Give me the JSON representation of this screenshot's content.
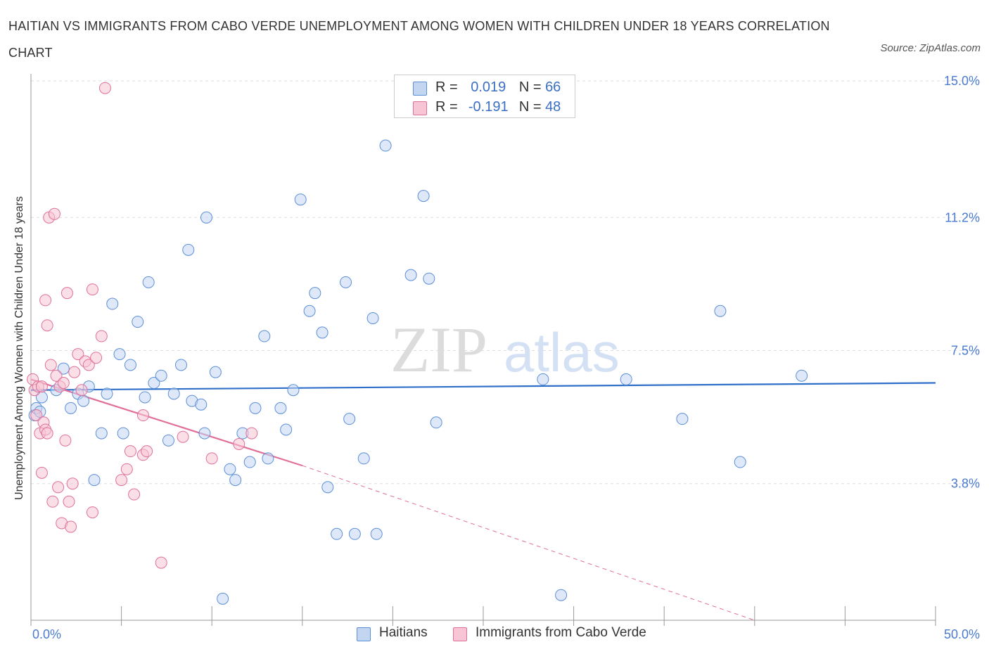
{
  "title": "HAITIAN VS IMMIGRANTS FROM CABO VERDE UNEMPLOYMENT AMONG WOMEN WITH CHILDREN UNDER 18 YEARS CORRELATION CHART",
  "source": "Source: ZipAtlas.com",
  "watermark_zip": "ZIP",
  "watermark_atlas": "atlas",
  "legend": {
    "r_label": "R =",
    "n_label": "N =",
    "haitians": {
      "r": "0.019",
      "n": "66"
    },
    "caboverde": {
      "r": "-0.191",
      "n": "48"
    }
  },
  "chart_data": {
    "type": "scatter",
    "ylabel": "Unemployment Among Women with Children Under 18 years",
    "xlim": [
      0,
      50
    ],
    "ylim": [
      0,
      15
    ],
    "x_tick_labels": [
      "0.0%",
      "50.0%"
    ],
    "y_ticks": [
      {
        "value": 3.8,
        "label": "3.8%"
      },
      {
        "value": 7.5,
        "label": "7.5%"
      },
      {
        "value": 11.2,
        "label": "11.2%"
      },
      {
        "value": 15.0,
        "label": "15.0%"
      }
    ],
    "series": [
      {
        "name": "Haitians",
        "color": "#5b8fd6",
        "fill": "#c2d6f2",
        "trend": {
          "x": [
            0,
            50
          ],
          "y": [
            6.4,
            6.6
          ],
          "style": "solid"
        },
        "points": [
          [
            0.2,
            5.7
          ],
          [
            0.3,
            5.9
          ],
          [
            0.5,
            5.8
          ],
          [
            0.6,
            6.2
          ],
          [
            1.4,
            6.4
          ],
          [
            1.8,
            7.0
          ],
          [
            2.2,
            5.9
          ],
          [
            2.6,
            6.3
          ],
          [
            2.9,
            6.1
          ],
          [
            3.2,
            6.5
          ],
          [
            3.5,
            3.9
          ],
          [
            3.9,
            5.2
          ],
          [
            4.2,
            6.3
          ],
          [
            4.5,
            8.8
          ],
          [
            4.9,
            7.4
          ],
          [
            5.1,
            5.2
          ],
          [
            5.5,
            7.1
          ],
          [
            5.9,
            8.3
          ],
          [
            6.3,
            6.2
          ],
          [
            6.5,
            9.4
          ],
          [
            6.8,
            6.6
          ],
          [
            7.2,
            6.8
          ],
          [
            7.6,
            5.0
          ],
          [
            7.9,
            6.3
          ],
          [
            8.3,
            7.1
          ],
          [
            8.7,
            10.3
          ],
          [
            8.9,
            6.1
          ],
          [
            9.4,
            6.0
          ],
          [
            9.6,
            5.2
          ],
          [
            9.7,
            11.2
          ],
          [
            10.2,
            6.9
          ],
          [
            10.6,
            0.6
          ],
          [
            11.0,
            4.2
          ],
          [
            11.3,
            3.9
          ],
          [
            11.7,
            5.2
          ],
          [
            12.1,
            4.4
          ],
          [
            12.4,
            5.9
          ],
          [
            12.9,
            7.9
          ],
          [
            13.1,
            4.5
          ],
          [
            13.8,
            5.9
          ],
          [
            14.1,
            5.3
          ],
          [
            14.5,
            6.4
          ],
          [
            14.9,
            11.7
          ],
          [
            15.4,
            8.6
          ],
          [
            15.7,
            9.1
          ],
          [
            16.1,
            8.0
          ],
          [
            16.4,
            3.7
          ],
          [
            16.9,
            2.4
          ],
          [
            17.4,
            9.4
          ],
          [
            17.6,
            5.6
          ],
          [
            17.9,
            2.4
          ],
          [
            18.4,
            4.5
          ],
          [
            18.9,
            8.4
          ],
          [
            19.1,
            2.4
          ],
          [
            19.6,
            13.2
          ],
          [
            21.0,
            9.6
          ],
          [
            21.7,
            11.8
          ],
          [
            22.0,
            9.5
          ],
          [
            22.4,
            5.5
          ],
          [
            28.3,
            6.7
          ],
          [
            29.3,
            0.7
          ],
          [
            32.9,
            6.7
          ],
          [
            36.0,
            5.6
          ],
          [
            38.1,
            8.6
          ],
          [
            39.2,
            4.4
          ],
          [
            42.6,
            6.8
          ]
        ]
      },
      {
        "name": "Immigrants from Cabo Verde",
        "color": "#e0709a",
        "fill": "#f7c5d4",
        "trend": {
          "x": [
            0,
            15
          ],
          "y": [
            6.7,
            4.3
          ],
          "style": "solid",
          "dashed_extension_to": [
            40,
            0
          ]
        },
        "points": [
          [
            0.1,
            6.7
          ],
          [
            0.2,
            6.4
          ],
          [
            0.3,
            5.7
          ],
          [
            0.4,
            6.5
          ],
          [
            0.5,
            5.2
          ],
          [
            0.6,
            4.1
          ],
          [
            0.7,
            5.5
          ],
          [
            0.8,
            5.3
          ],
          [
            0.9,
            5.2
          ],
          [
            0.8,
            8.9
          ],
          [
            0.9,
            8.2
          ],
          [
            1.0,
            11.2
          ],
          [
            1.1,
            7.1
          ],
          [
            1.2,
            3.3
          ],
          [
            1.3,
            11.3
          ],
          [
            1.4,
            6.8
          ],
          [
            1.5,
            3.7
          ],
          [
            1.6,
            6.5
          ],
          [
            1.7,
            2.7
          ],
          [
            1.8,
            6.6
          ],
          [
            1.9,
            5.0
          ],
          [
            2.0,
            9.1
          ],
          [
            2.1,
            3.3
          ],
          [
            2.2,
            2.6
          ],
          [
            2.3,
            3.8
          ],
          [
            2.4,
            6.9
          ],
          [
            2.6,
            7.4
          ],
          [
            2.8,
            6.4
          ],
          [
            3.0,
            7.2
          ],
          [
            3.2,
            7.1
          ],
          [
            3.4,
            9.2
          ],
          [
            3.4,
            3.0
          ],
          [
            3.6,
            7.3
          ],
          [
            3.9,
            7.9
          ],
          [
            4.1,
            14.8
          ],
          [
            5.0,
            3.9
          ],
          [
            5.3,
            4.2
          ],
          [
            5.5,
            4.7
          ],
          [
            5.7,
            3.5
          ],
          [
            6.2,
            5.7
          ],
          [
            6.2,
            4.6
          ],
          [
            6.4,
            4.7
          ],
          [
            7.2,
            1.6
          ],
          [
            8.4,
            5.1
          ],
          [
            10.0,
            4.5
          ],
          [
            11.5,
            4.9
          ],
          [
            12.2,
            5.2
          ],
          [
            0.6,
            6.5
          ]
        ]
      }
    ]
  },
  "bottom_legend": [
    "Haitians",
    "Immigrants from Cabo Verde"
  ]
}
